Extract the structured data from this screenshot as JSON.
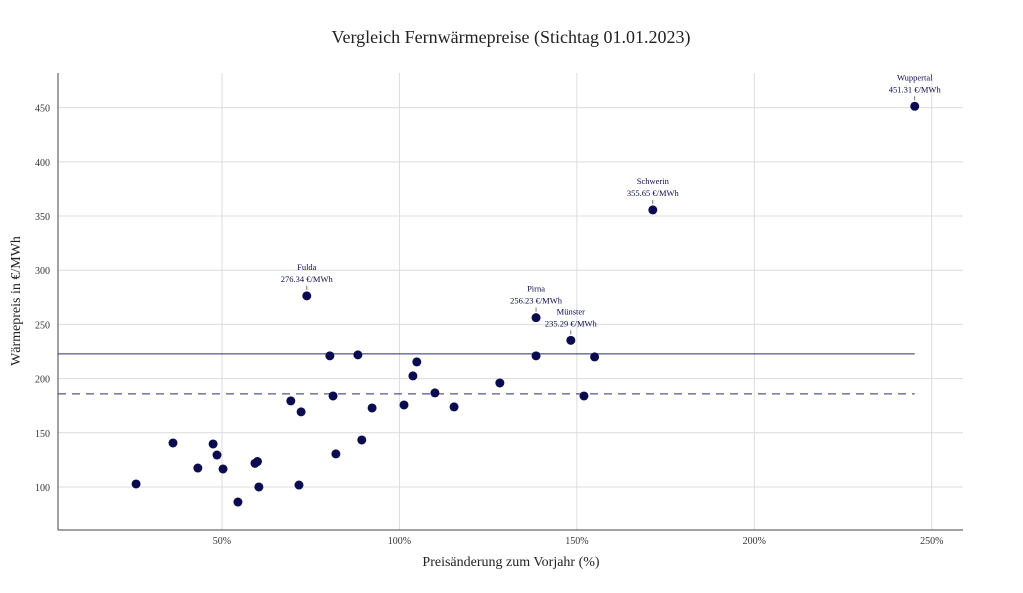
{
  "chart_data": {
    "type": "scatter",
    "title": "Vergleich Fernwärmepreise (Stichtag 01.01.2023)",
    "xlabel": "Preisänderung zum Vorjahr (%)",
    "ylabel": "Wärmepreis in €/MWh",
    "xlim": [
      3.8,
      258.8
    ],
    "ylim": [
      60.3,
      482
    ],
    "x_ticks": [
      50,
      100,
      150,
      200,
      250
    ],
    "x_tick_labels": [
      "50%",
      "100%",
      "150%",
      "200%",
      "250%"
    ],
    "y_ticks": [
      100,
      150,
      200,
      250,
      300,
      350,
      400,
      450
    ],
    "y_tick_labels": [
      "100",
      "150",
      "200",
      "250",
      "300",
      "350",
      "400",
      "450"
    ],
    "grid": true,
    "marker_color": "#0b0b4f",
    "points": [
      {
        "x": 25.8,
        "y": 102.8
      },
      {
        "x": 36.2,
        "y": 140.6
      },
      {
        "x": 43.2,
        "y": 117.5
      },
      {
        "x": 47.5,
        "y": 139.7
      },
      {
        "x": 48.6,
        "y": 129.5
      },
      {
        "x": 50.3,
        "y": 116.6
      },
      {
        "x": 54.5,
        "y": 86.1
      },
      {
        "x": 59.3,
        "y": 121.8
      },
      {
        "x": 60.0,
        "y": 123.5
      },
      {
        "x": 60.4,
        "y": 100.0
      },
      {
        "x": 69.4,
        "y": 179.4
      },
      {
        "x": 71.7,
        "y": 101.8
      },
      {
        "x": 72.3,
        "y": 169.3
      },
      {
        "x": 73.9,
        "y": 276.34
      },
      {
        "x": 80.4,
        "y": 221.0
      },
      {
        "x": 81.3,
        "y": 184.0
      },
      {
        "x": 82.1,
        "y": 130.5
      },
      {
        "x": 88.3,
        "y": 221.9
      },
      {
        "x": 89.4,
        "y": 143.4
      },
      {
        "x": 92.3,
        "y": 172.9
      },
      {
        "x": 101.3,
        "y": 175.7
      },
      {
        "x": 103.8,
        "y": 202.5
      },
      {
        "x": 104.9,
        "y": 215.4
      },
      {
        "x": 110.0,
        "y": 186.8
      },
      {
        "x": 115.4,
        "y": 173.9
      },
      {
        "x": 128.3,
        "y": 196.0
      },
      {
        "x": 138.5,
        "y": 256.23
      },
      {
        "x": 138.5,
        "y": 221.0
      },
      {
        "x": 148.3,
        "y": 235.29
      },
      {
        "x": 152.0,
        "y": 184.0
      },
      {
        "x": 155.0,
        "y": 220.0
      },
      {
        "x": 171.4,
        "y": 355.65
      },
      {
        "x": 245.2,
        "y": 451.31
      }
    ],
    "annotations": [
      {
        "name": "Fulda",
        "value": "276.34 €/MWh",
        "x": 73.9,
        "y": 276.34
      },
      {
        "name": "Pirna",
        "value": "256.23 €/MWh",
        "x": 138.5,
        "y": 256.23
      },
      {
        "name": "Münster",
        "value": "235.29 €/MWh",
        "x": 148.3,
        "y": 235.29
      },
      {
        "name": "Schwerin",
        "value": "355.65 €/MWh",
        "x": 171.4,
        "y": 355.65
      },
      {
        "name": "Wuppertal",
        "value": "451.31 €/MWh",
        "x": 245.2,
        "y": 451.31
      }
    ],
    "reference_lines": [
      {
        "style": "solid",
        "y": 222.8,
        "x_range": [
          3.8,
          245.2
        ],
        "color": "#2b2d6e"
      },
      {
        "style": "dashed",
        "y": 185.9,
        "x_range": [
          3.8,
          245.2
        ],
        "color": "#2b2d6e"
      }
    ]
  }
}
